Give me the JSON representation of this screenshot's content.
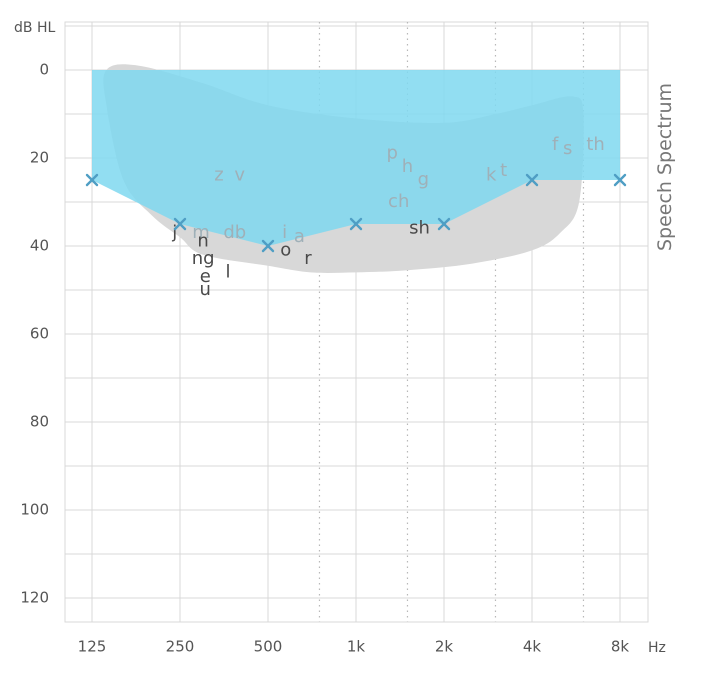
{
  "colors": {
    "grid": "#d9d9d9",
    "banana": "#d8d8d8",
    "audiogram_fill": "#7fd8f0",
    "audiogram_fill_opacity": 0.85,
    "marker": "#4f9ec4",
    "phoneme_dark": "#4a4a4a",
    "phoneme_light": "#9fb0b8"
  },
  "chart_data": {
    "type": "area",
    "y_unit": "dB HL",
    "x_unit": "Hz",
    "right_label": "Speech Spectrum",
    "x_ticks": [
      "125",
      "250",
      "500",
      "1k",
      "2k",
      "4k",
      "8k"
    ],
    "x_freqs": [
      125,
      250,
      500,
      1000,
      2000,
      4000,
      8000
    ],
    "x_interoctave_freqs": [
      750,
      1500,
      3000,
      6000
    ],
    "y_ticks": [
      0,
      20,
      40,
      60,
      80,
      100,
      120
    ],
    "ylim": [
      -10,
      125
    ],
    "y_inverted": true,
    "series": [
      {
        "kind": "hearing-threshold",
        "x": [
          125,
          250,
          500,
          1000,
          2000,
          4000,
          8000
        ],
        "y": [
          25,
          35,
          40,
          35,
          35,
          25,
          25
        ]
      }
    ],
    "speech_spectrum_outline": {
      "x": [
        140,
        180,
        300,
        500,
        1000,
        2000,
        3000,
        4000,
        5500,
        6000,
        5800,
        5000,
        4000,
        2500,
        1500,
        1000,
        700,
        500,
        300,
        250,
        200,
        160,
        140
      ],
      "y": [
        0,
        -1,
        3,
        8,
        11,
        12,
        10,
        8,
        6,
        10,
        30,
        37,
        41,
        44,
        45.5,
        46,
        46,
        44.5,
        42,
        38,
        33,
        25,
        8
      ]
    },
    "phonemes": [
      {
        "text": "z",
        "x": 340,
        "y": 24,
        "tone": "light"
      },
      {
        "text": "v",
        "x": 400,
        "y": 24,
        "tone": "light"
      },
      {
        "text": "p",
        "x": 1330,
        "y": 19,
        "tone": "light"
      },
      {
        "text": "h",
        "x": 1500,
        "y": 22,
        "tone": "light"
      },
      {
        "text": "g",
        "x": 1700,
        "y": 25,
        "tone": "light"
      },
      {
        "text": "ch",
        "x": 1400,
        "y": 30,
        "tone": "light"
      },
      {
        "text": "k",
        "x": 2900,
        "y": 24,
        "tone": "light"
      },
      {
        "text": "t",
        "x": 3200,
        "y": 23,
        "tone": "light"
      },
      {
        "text": "f",
        "x": 4800,
        "y": 17,
        "tone": "light"
      },
      {
        "text": "s",
        "x": 5300,
        "y": 18,
        "tone": "light"
      },
      {
        "text": "th",
        "x": 6600,
        "y": 17,
        "tone": "light"
      },
      {
        "text": "j",
        "x": 240,
        "y": 37,
        "tone": "dark"
      },
      {
        "text": "m",
        "x": 295,
        "y": 37,
        "tone": "light"
      },
      {
        "text": "db",
        "x": 385,
        "y": 37,
        "tone": "light"
      },
      {
        "text": "i",
        "x": 570,
        "y": 37,
        "tone": "light"
      },
      {
        "text": "a",
        "x": 640,
        "y": 38,
        "tone": "light"
      },
      {
        "text": "n",
        "x": 300,
        "y": 39,
        "tone": "dark"
      },
      {
        "text": "o",
        "x": 575,
        "y": 41,
        "tone": "dark"
      },
      {
        "text": "r",
        "x": 685,
        "y": 43,
        "tone": "dark"
      },
      {
        "text": "ng",
        "x": 300,
        "y": 43,
        "tone": "dark"
      },
      {
        "text": "l",
        "x": 365,
        "y": 46,
        "tone": "dark"
      },
      {
        "text": "e",
        "x": 305,
        "y": 47,
        "tone": "dark"
      },
      {
        "text": "u",
        "x": 305,
        "y": 50,
        "tone": "dark"
      },
      {
        "text": "sh",
        "x": 1650,
        "y": 36,
        "tone": "dark"
      }
    ]
  }
}
